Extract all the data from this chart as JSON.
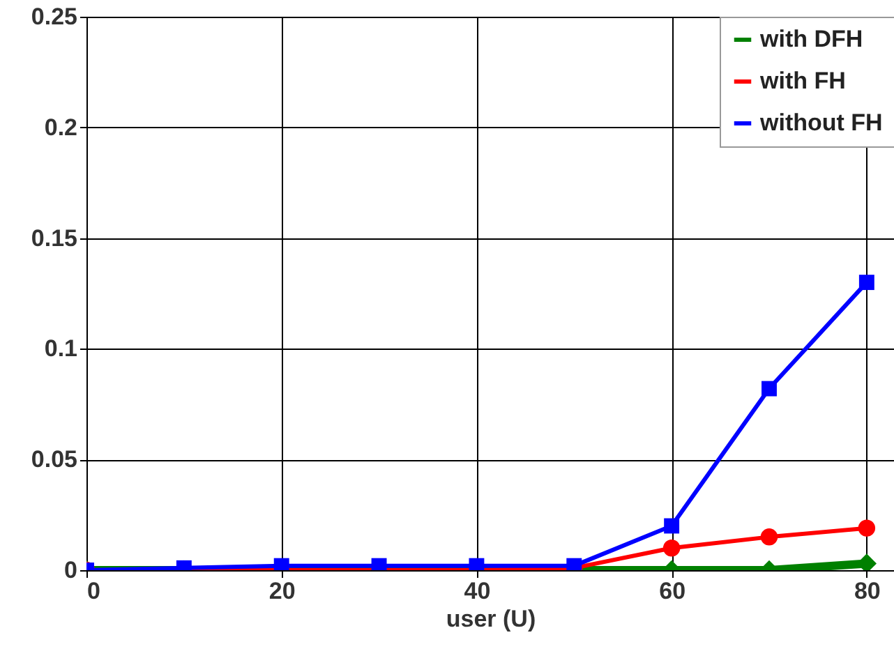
{
  "chart_data": {
    "type": "line",
    "xlabel": "user (U)",
    "x": [
      0,
      10,
      20,
      30,
      40,
      50,
      60,
      70,
      80
    ],
    "xlim": [
      0,
      82.8
    ],
    "xticks": [
      0,
      20,
      40,
      60,
      80
    ],
    "ylim": [
      0,
      0.25
    ],
    "yticks": [
      0,
      0.05,
      0.1,
      0.15,
      0.2,
      0.25
    ],
    "series": [
      {
        "name": "with DFH",
        "color": "#008000",
        "marker": "diamond",
        "values": [
          0,
          0,
          0,
          0,
          0,
          0,
          0,
          0,
          0.003
        ]
      },
      {
        "name": "with FH",
        "color": "#ff0000",
        "marker": "circle",
        "values": [
          0,
          0,
          0,
          0,
          0,
          0.001,
          0.01,
          0.015,
          0.019
        ]
      },
      {
        "name": "without FH",
        "color": "#0000ff",
        "marker": "square",
        "values": [
          0,
          0.001,
          0.002,
          0.002,
          0.002,
          0.002,
          0.02,
          0.082,
          0.13
        ]
      }
    ],
    "grid": true,
    "legend": "top right",
    "line_style": "solid"
  }
}
